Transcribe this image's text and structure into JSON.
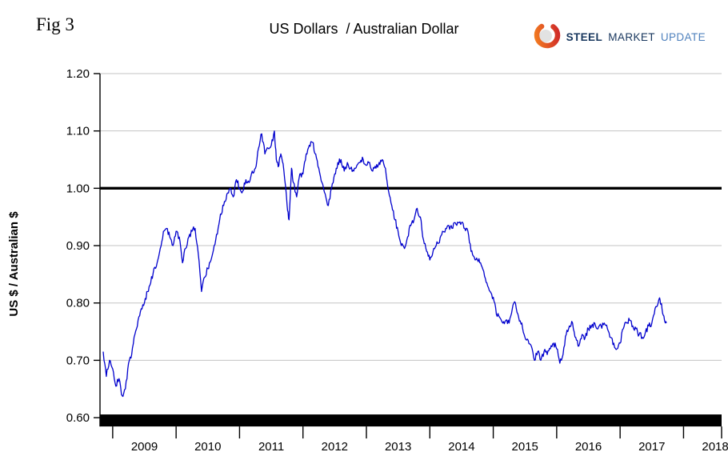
{
  "figure_label": "Fig 3",
  "title": "US Dollars  / Australian Dollar",
  "logo": {
    "steel": "STEEL",
    "market": "MARKET",
    "update": "UPDATE"
  },
  "colors": {
    "line": "#0101cd",
    "reference_line": "#000000",
    "grid": "#c3c3c3",
    "axis": "#000000",
    "logo_orange": "#f58220",
    "logo_red": "#cc2229",
    "logo_navy": "#17365d",
    "logo_blue": "#4f81bd"
  },
  "chart_data": {
    "type": "line",
    "title": "US Dollars / Australian Dollar",
    "xlabel": "",
    "ylabel": "US $ / Australian $",
    "xlim": [
      2008.8,
      2018.6
    ],
    "ylim": [
      0.575,
      1.2
    ],
    "yticks": [
      0.6,
      0.7,
      0.8,
      0.9,
      1.0,
      1.1,
      1.2
    ],
    "xtick_labels": [
      "2009",
      "2010",
      "2011",
      "2012",
      "2013",
      "2014",
      "2015",
      "2016",
      "2017",
      "2018"
    ],
    "reference_y": 1.0,
    "grid": true,
    "legend": "none",
    "series": [
      {
        "name": "US $ per Australian $",
        "points": [
          [
            2008.85,
            0.715
          ],
          [
            2008.9,
            0.672
          ],
          [
            2008.95,
            0.7
          ],
          [
            2009.0,
            0.685
          ],
          [
            2009.05,
            0.655
          ],
          [
            2009.1,
            0.668
          ],
          [
            2009.15,
            0.638
          ],
          [
            2009.2,
            0.65
          ],
          [
            2009.25,
            0.695
          ],
          [
            2009.3,
            0.71
          ],
          [
            2009.35,
            0.745
          ],
          [
            2009.4,
            0.77
          ],
          [
            2009.45,
            0.79
          ],
          [
            2009.5,
            0.8
          ],
          [
            2009.55,
            0.82
          ],
          [
            2009.6,
            0.835
          ],
          [
            2009.65,
            0.86
          ],
          [
            2009.7,
            0.87
          ],
          [
            2009.75,
            0.895
          ],
          [
            2009.8,
            0.925
          ],
          [
            2009.85,
            0.93
          ],
          [
            2009.9,
            0.915
          ],
          [
            2009.95,
            0.9
          ],
          [
            2010.0,
            0.925
          ],
          [
            2010.05,
            0.915
          ],
          [
            2010.1,
            0.87
          ],
          [
            2010.15,
            0.895
          ],
          [
            2010.2,
            0.915
          ],
          [
            2010.25,
            0.925
          ],
          [
            2010.3,
            0.93
          ],
          [
            2010.35,
            0.885
          ],
          [
            2010.4,
            0.82
          ],
          [
            2010.45,
            0.845
          ],
          [
            2010.5,
            0.86
          ],
          [
            2010.55,
            0.875
          ],
          [
            2010.6,
            0.9
          ],
          [
            2010.65,
            0.92
          ],
          [
            2010.7,
            0.955
          ],
          [
            2010.75,
            0.97
          ],
          [
            2010.8,
            0.99
          ],
          [
            2010.85,
            1.0
          ],
          [
            2010.9,
            0.985
          ],
          [
            2010.95,
            1.015
          ],
          [
            2011.0,
            1.0
          ],
          [
            2011.05,
            0.995
          ],
          [
            2011.1,
            1.015
          ],
          [
            2011.15,
            1.01
          ],
          [
            2011.2,
            1.03
          ],
          [
            2011.25,
            1.035
          ],
          [
            2011.3,
            1.07
          ],
          [
            2011.35,
            1.095
          ],
          [
            2011.4,
            1.06
          ],
          [
            2011.45,
            1.07
          ],
          [
            2011.5,
            1.075
          ],
          [
            2011.55,
            1.1
          ],
          [
            2011.58,
            1.05
          ],
          [
            2011.62,
            1.04
          ],
          [
            2011.65,
            1.06
          ],
          [
            2011.7,
            1.03
          ],
          [
            2011.75,
            0.97
          ],
          [
            2011.78,
            0.945
          ],
          [
            2011.82,
            1.035
          ],
          [
            2011.85,
            1.01
          ],
          [
            2011.9,
            0.985
          ],
          [
            2011.95,
            1.025
          ],
          [
            2012.0,
            1.025
          ],
          [
            2012.05,
            1.06
          ],
          [
            2012.1,
            1.075
          ],
          [
            2012.15,
            1.08
          ],
          [
            2012.2,
            1.06
          ],
          [
            2012.25,
            1.035
          ],
          [
            2012.3,
            1.01
          ],
          [
            2012.35,
            0.99
          ],
          [
            2012.4,
            0.97
          ],
          [
            2012.45,
            1.0
          ],
          [
            2012.5,
            1.025
          ],
          [
            2012.55,
            1.045
          ],
          [
            2012.6,
            1.05
          ],
          [
            2012.65,
            1.03
          ],
          [
            2012.7,
            1.045
          ],
          [
            2012.75,
            1.035
          ],
          [
            2012.8,
            1.03
          ],
          [
            2012.85,
            1.04
          ],
          [
            2012.9,
            1.045
          ],
          [
            2012.95,
            1.05
          ],
          [
            2013.0,
            1.04
          ],
          [
            2013.05,
            1.045
          ],
          [
            2013.1,
            1.03
          ],
          [
            2013.15,
            1.035
          ],
          [
            2013.2,
            1.045
          ],
          [
            2013.25,
            1.05
          ],
          [
            2013.3,
            1.035
          ],
          [
            2013.35,
            0.995
          ],
          [
            2013.4,
            0.97
          ],
          [
            2013.45,
            0.945
          ],
          [
            2013.5,
            0.925
          ],
          [
            2013.55,
            0.9
          ],
          [
            2013.6,
            0.895
          ],
          [
            2013.65,
            0.915
          ],
          [
            2013.7,
            0.935
          ],
          [
            2013.75,
            0.945
          ],
          [
            2013.8,
            0.965
          ],
          [
            2013.85,
            0.95
          ],
          [
            2013.9,
            0.91
          ],
          [
            2013.95,
            0.89
          ],
          [
            2014.0,
            0.875
          ],
          [
            2014.05,
            0.89
          ],
          [
            2014.1,
            0.9
          ],
          [
            2014.15,
            0.905
          ],
          [
            2014.2,
            0.925
          ],
          [
            2014.25,
            0.93
          ],
          [
            2014.3,
            0.935
          ],
          [
            2014.35,
            0.93
          ],
          [
            2014.4,
            0.94
          ],
          [
            2014.45,
            0.94
          ],
          [
            2014.5,
            0.94
          ],
          [
            2014.55,
            0.93
          ],
          [
            2014.6,
            0.925
          ],
          [
            2014.65,
            0.89
          ],
          [
            2014.7,
            0.88
          ],
          [
            2014.75,
            0.875
          ],
          [
            2014.8,
            0.87
          ],
          [
            2014.85,
            0.855
          ],
          [
            2014.9,
            0.835
          ],
          [
            2014.95,
            0.82
          ],
          [
            2015.0,
            0.81
          ],
          [
            2015.05,
            0.78
          ],
          [
            2015.1,
            0.775
          ],
          [
            2015.15,
            0.765
          ],
          [
            2015.2,
            0.77
          ],
          [
            2015.25,
            0.765
          ],
          [
            2015.3,
            0.79
          ],
          [
            2015.35,
            0.8
          ],
          [
            2015.4,
            0.775
          ],
          [
            2015.45,
            0.765
          ],
          [
            2015.5,
            0.74
          ],
          [
            2015.55,
            0.735
          ],
          [
            2015.6,
            0.725
          ],
          [
            2015.65,
            0.7
          ],
          [
            2015.7,
            0.715
          ],
          [
            2015.75,
            0.7
          ],
          [
            2015.8,
            0.715
          ],
          [
            2015.85,
            0.71
          ],
          [
            2015.9,
            0.72
          ],
          [
            2015.95,
            0.73
          ],
          [
            2016.0,
            0.72
          ],
          [
            2016.05,
            0.695
          ],
          [
            2016.1,
            0.71
          ],
          [
            2016.15,
            0.745
          ],
          [
            2016.2,
            0.76
          ],
          [
            2016.25,
            0.765
          ],
          [
            2016.3,
            0.74
          ],
          [
            2016.35,
            0.725
          ],
          [
            2016.4,
            0.745
          ],
          [
            2016.45,
            0.74
          ],
          [
            2016.5,
            0.755
          ],
          [
            2016.55,
            0.76
          ],
          [
            2016.6,
            0.765
          ],
          [
            2016.65,
            0.755
          ],
          [
            2016.7,
            0.76
          ],
          [
            2016.75,
            0.765
          ],
          [
            2016.8,
            0.755
          ],
          [
            2016.85,
            0.74
          ],
          [
            2016.9,
            0.73
          ],
          [
            2016.95,
            0.72
          ],
          [
            2017.0,
            0.73
          ],
          [
            2017.05,
            0.755
          ],
          [
            2017.1,
            0.765
          ],
          [
            2017.15,
            0.77
          ],
          [
            2017.2,
            0.76
          ],
          [
            2017.25,
            0.755
          ],
          [
            2017.3,
            0.745
          ],
          [
            2017.35,
            0.74
          ],
          [
            2017.4,
            0.75
          ],
          [
            2017.45,
            0.76
          ],
          [
            2017.5,
            0.765
          ],
          [
            2017.55,
            0.79
          ],
          [
            2017.6,
            0.8
          ],
          [
            2017.63,
            0.805
          ],
          [
            2017.66,
            0.79
          ],
          [
            2017.7,
            0.77
          ],
          [
            2017.73,
            0.765
          ]
        ]
      }
    ]
  }
}
